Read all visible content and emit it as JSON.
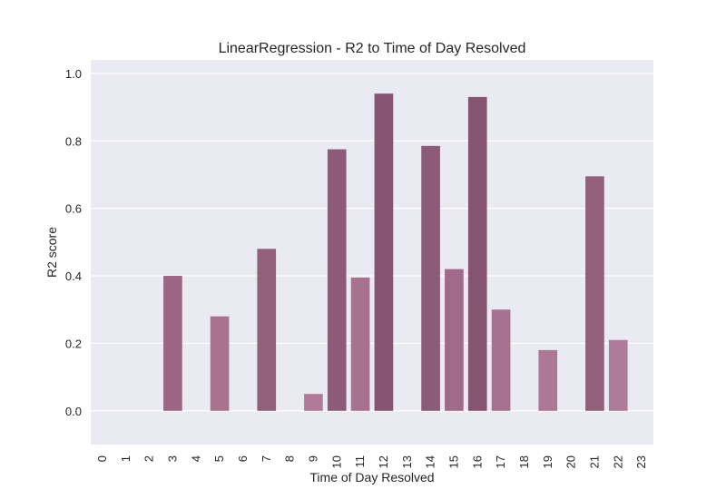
{
  "chart_data": {
    "type": "bar",
    "title": "LinearRegression - R2 to Time of Day Resolved",
    "xlabel": "Time of Day Resolved",
    "ylabel": "R2 score",
    "ylim": [
      -0.1,
      1.04
    ],
    "yticks": [
      "0.0",
      "0.2",
      "0.4",
      "0.6",
      "0.8",
      "1.0"
    ],
    "categories": [
      "0",
      "1",
      "2",
      "3",
      "4",
      "5",
      "6",
      "7",
      "8",
      "9",
      "10",
      "11",
      "12",
      "13",
      "14",
      "15",
      "16",
      "17",
      "18",
      "19",
      "20",
      "21",
      "22",
      "23"
    ],
    "values": [
      0,
      0,
      0,
      0.4,
      0,
      0.28,
      0,
      0.48,
      0,
      0.05,
      0.775,
      0.395,
      0.94,
      0,
      0.785,
      0.42,
      0.93,
      0.3,
      0,
      0.18,
      0,
      0.695,
      0.21,
      0
    ],
    "grid": true,
    "background_color": "#eaeaf2",
    "grid_color": "#ffffff",
    "bar_colors": [
      "#b07b9b",
      "#b07b9b",
      "#b07b9b",
      "#9a6683",
      "#b07b9b",
      "#a9728f",
      "#b07b9b",
      "#93607c",
      "#b07b9b",
      "#b07b9b",
      "#8b5b77",
      "#a6728f",
      "#845470",
      "#b07b9b",
      "#8b5b77",
      "#a06a88",
      "#845470",
      "#a6728f",
      "#b07b9b",
      "#ac7895",
      "#b07b9b",
      "#93607c",
      "#ae7b98",
      "#b07b9b"
    ]
  }
}
